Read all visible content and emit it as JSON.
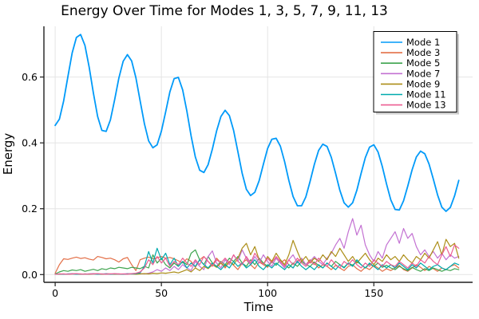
{
  "chart_data": {
    "type": "line",
    "title": "Energy Over Time for Modes 1, 3, 5, 7, 9, 11, 13",
    "xlabel": "Time",
    "ylabel": "Energy",
    "xlim": [
      -5.3,
      196.5
    ],
    "ylim": [
      -0.0235,
      0.754
    ],
    "xticks": [
      0,
      50,
      100,
      150
    ],
    "xtick_labels": [
      "0",
      "50",
      "100",
      "150"
    ],
    "yticks": [
      0.0,
      0.2,
      0.4,
      0.6
    ],
    "ytick_labels": [
      "0.0",
      "0.2",
      "0.4",
      "0.6"
    ],
    "grid": true,
    "legend_position": "top-right",
    "x_start": 0,
    "x_step": 2,
    "series": [
      {
        "name": "Mode 1",
        "color": "#009AF9",
        "values": [
          0.453,
          0.472,
          0.527,
          0.602,
          0.673,
          0.72,
          0.729,
          0.696,
          0.63,
          0.551,
          0.48,
          0.438,
          0.435,
          0.47,
          0.531,
          0.597,
          0.648,
          0.668,
          0.649,
          0.598,
          0.528,
          0.458,
          0.406,
          0.385,
          0.394,
          0.436,
          0.494,
          0.555,
          0.595,
          0.599,
          0.561,
          0.496,
          0.421,
          0.357,
          0.317,
          0.31,
          0.334,
          0.381,
          0.436,
          0.48,
          0.499,
          0.483,
          0.438,
          0.373,
          0.308,
          0.259,
          0.24,
          0.25,
          0.285,
          0.335,
          0.383,
          0.411,
          0.414,
          0.39,
          0.343,
          0.286,
          0.237,
          0.209,
          0.209,
          0.236,
          0.283,
          0.335,
          0.377,
          0.396,
          0.389,
          0.356,
          0.307,
          0.256,
          0.218,
          0.205,
          0.218,
          0.256,
          0.307,
          0.355,
          0.387,
          0.394,
          0.372,
          0.328,
          0.275,
          0.227,
          0.198,
          0.196,
          0.224,
          0.269,
          0.318,
          0.357,
          0.375,
          0.367,
          0.336,
          0.29,
          0.242,
          0.205,
          0.192,
          0.204,
          0.239,
          0.286
        ]
      },
      {
        "name": "Mode 3",
        "color": "#E36F47",
        "values": [
          0.004,
          0.03,
          0.048,
          0.046,
          0.05,
          0.053,
          0.049,
          0.051,
          0.047,
          0.044,
          0.055,
          0.052,
          0.048,
          0.05,
          0.045,
          0.038,
          0.048,
          0.052,
          0.03,
          0.012,
          0.045,
          0.05,
          0.053,
          0.048,
          0.051,
          0.055,
          0.05,
          0.052,
          0.048,
          0.042,
          0.035,
          0.048,
          0.04,
          0.022,
          0.045,
          0.055,
          0.04,
          0.028,
          0.05,
          0.035,
          0.02,
          0.04,
          0.028,
          0.015,
          0.035,
          0.045,
          0.03,
          0.018,
          0.038,
          0.03,
          0.022,
          0.04,
          0.05,
          0.035,
          0.045,
          0.03,
          0.02,
          0.042,
          0.048,
          0.03,
          0.045,
          0.035,
          0.02,
          0.03,
          0.025,
          0.015,
          0.028,
          0.02,
          0.012,
          0.025,
          0.03,
          0.018,
          0.01,
          0.022,
          0.015,
          0.028,
          0.02,
          0.01,
          0.018,
          0.012,
          0.02,
          0.028,
          0.015,
          0.01,
          0.02,
          0.03,
          0.022,
          0.012,
          0.025,
          0.018,
          0.01,
          0.02,
          0.015,
          0.025,
          0.03,
          0.02
        ]
      },
      {
        "name": "Mode 5",
        "color": "#3EA44E",
        "values": [
          0.002,
          0.008,
          0.012,
          0.01,
          0.014,
          0.012,
          0.015,
          0.01,
          0.013,
          0.016,
          0.012,
          0.018,
          0.015,
          0.02,
          0.018,
          0.022,
          0.02,
          0.018,
          0.022,
          0.02,
          0.018,
          0.025,
          0.02,
          0.06,
          0.035,
          0.05,
          0.03,
          0.02,
          0.035,
          0.025,
          0.04,
          0.03,
          0.065,
          0.075,
          0.045,
          0.03,
          0.055,
          0.035,
          0.025,
          0.04,
          0.03,
          0.05,
          0.04,
          0.055,
          0.035,
          0.025,
          0.045,
          0.03,
          0.05,
          0.035,
          0.025,
          0.04,
          0.028,
          0.045,
          0.03,
          0.02,
          0.035,
          0.025,
          0.04,
          0.03,
          0.025,
          0.038,
          0.028,
          0.02,
          0.035,
          0.025,
          0.04,
          0.03,
          0.022,
          0.035,
          0.028,
          0.04,
          0.03,
          0.02,
          0.032,
          0.025,
          0.035,
          0.022,
          0.028,
          0.02,
          0.015,
          0.025,
          0.018,
          0.012,
          0.022,
          0.015,
          0.01,
          0.018,
          0.012,
          0.02,
          0.015,
          0.01,
          0.015,
          0.012,
          0.018,
          0.015
        ]
      },
      {
        "name": "Mode 7",
        "color": "#C371D2",
        "values": [
          0.001,
          0.002,
          0.001,
          0.002,
          0.003,
          0.002,
          0.001,
          0.002,
          0.002,
          0.003,
          0.002,
          0.001,
          0.003,
          0.002,
          0.002,
          0.001,
          0.002,
          0.003,
          0.002,
          0.002,
          0.003,
          0.002,
          0.004,
          0.008,
          0.015,
          0.01,
          0.02,
          0.012,
          0.025,
          0.015,
          0.03,
          0.02,
          0.012,
          0.04,
          0.025,
          0.015,
          0.055,
          0.072,
          0.035,
          0.02,
          0.045,
          0.03,
          0.06,
          0.04,
          0.075,
          0.05,
          0.03,
          0.055,
          0.035,
          0.06,
          0.04,
          0.025,
          0.05,
          0.035,
          0.02,
          0.045,
          0.06,
          0.035,
          0.05,
          0.03,
          0.04,
          0.055,
          0.04,
          0.03,
          0.05,
          0.065,
          0.09,
          0.11,
          0.08,
          0.13,
          0.17,
          0.12,
          0.15,
          0.09,
          0.06,
          0.04,
          0.07,
          0.05,
          0.09,
          0.11,
          0.13,
          0.095,
          0.14,
          0.11,
          0.125,
          0.085,
          0.06,
          0.075,
          0.055,
          0.07,
          0.05,
          0.065,
          0.045,
          0.06,
          0.05,
          0.055
        ]
      },
      {
        "name": "Mode 9",
        "color": "#AC8E18",
        "values": [
          0.001,
          0.001,
          0.002,
          0.001,
          0.002,
          0.002,
          0.001,
          0.002,
          0.001,
          0.002,
          0.002,
          0.001,
          0.002,
          0.002,
          0.001,
          0.002,
          0.001,
          0.002,
          0.002,
          0.001,
          0.002,
          0.003,
          0.002,
          0.004,
          0.003,
          0.005,
          0.004,
          0.006,
          0.008,
          0.005,
          0.01,
          0.015,
          0.008,
          0.02,
          0.012,
          0.025,
          0.018,
          0.03,
          0.022,
          0.035,
          0.025,
          0.04,
          0.03,
          0.05,
          0.08,
          0.095,
          0.06,
          0.085,
          0.045,
          0.03,
          0.055,
          0.04,
          0.065,
          0.045,
          0.03,
          0.06,
          0.104,
          0.07,
          0.04,
          0.055,
          0.035,
          0.05,
          0.04,
          0.06,
          0.045,
          0.07,
          0.055,
          0.08,
          0.06,
          0.04,
          0.055,
          0.035,
          0.05,
          0.065,
          0.045,
          0.03,
          0.05,
          0.04,
          0.06,
          0.045,
          0.055,
          0.04,
          0.06,
          0.045,
          0.035,
          0.055,
          0.045,
          0.065,
          0.05,
          0.075,
          0.1,
          0.06,
          0.107,
          0.085,
          0.095,
          0.05
        ]
      },
      {
        "name": "Mode 11",
        "color": "#00AAAE",
        "values": [
          0.001,
          0.002,
          0.001,
          0.002,
          0.002,
          0.001,
          0.002,
          0.001,
          0.002,
          0.002,
          0.001,
          0.002,
          0.002,
          0.001,
          0.002,
          0.002,
          0.001,
          0.002,
          0.002,
          0.003,
          0.005,
          0.025,
          0.07,
          0.035,
          0.08,
          0.045,
          0.065,
          0.03,
          0.05,
          0.025,
          0.04,
          0.02,
          0.035,
          0.025,
          0.045,
          0.03,
          0.02,
          0.035,
          0.025,
          0.015,
          0.03,
          0.02,
          0.04,
          0.025,
          0.035,
          0.02,
          0.03,
          0.045,
          0.025,
          0.015,
          0.03,
          0.02,
          0.035,
          0.025,
          0.015,
          0.03,
          0.02,
          0.04,
          0.025,
          0.015,
          0.025,
          0.015,
          0.03,
          0.02,
          0.035,
          0.025,
          0.015,
          0.03,
          0.02,
          0.035,
          0.025,
          0.045,
          0.03,
          0.02,
          0.035,
          0.025,
          0.015,
          0.03,
          0.02,
          0.03,
          0.02,
          0.035,
          0.025,
          0.015,
          0.03,
          0.02,
          0.035,
          0.025,
          0.015,
          0.025,
          0.03,
          0.02,
          0.015,
          0.025,
          0.035,
          0.03
        ]
      },
      {
        "name": "Mode 13",
        "color": "#ED5E93",
        "values": [
          0.001,
          0.002,
          0.002,
          0.001,
          0.002,
          0.003,
          0.002,
          0.001,
          0.002,
          0.002,
          0.003,
          0.002,
          0.001,
          0.002,
          0.003,
          0.002,
          0.002,
          0.001,
          0.003,
          0.004,
          0.008,
          0.02,
          0.045,
          0.03,
          0.055,
          0.035,
          0.05,
          0.025,
          0.04,
          0.03,
          0.05,
          0.035,
          0.025,
          0.045,
          0.03,
          0.055,
          0.04,
          0.025,
          0.045,
          0.035,
          0.05,
          0.035,
          0.06,
          0.04,
          0.03,
          0.055,
          0.035,
          0.065,
          0.045,
          0.03,
          0.05,
          0.035,
          0.055,
          0.04,
          0.025,
          0.045,
          0.03,
          0.05,
          0.035,
          0.025,
          0.04,
          0.03,
          0.05,
          0.035,
          0.025,
          0.045,
          0.03,
          0.02,
          0.04,
          0.03,
          0.045,
          0.03,
          0.02,
          0.035,
          0.025,
          0.045,
          0.035,
          0.025,
          0.04,
          0.03,
          0.025,
          0.04,
          0.03,
          0.02,
          0.035,
          0.025,
          0.045,
          0.035,
          0.055,
          0.04,
          0.03,
          0.06,
          0.085,
          0.055,
          0.09,
          0.08
        ]
      }
    ],
    "colors": {
      "grid": "#E4E4E4",
      "spine": "#1F1F1F",
      "legend_border": "#000000",
      "legend_background": "#FFFFFF",
      "legend_shadow": "#9E9E9E"
    }
  }
}
